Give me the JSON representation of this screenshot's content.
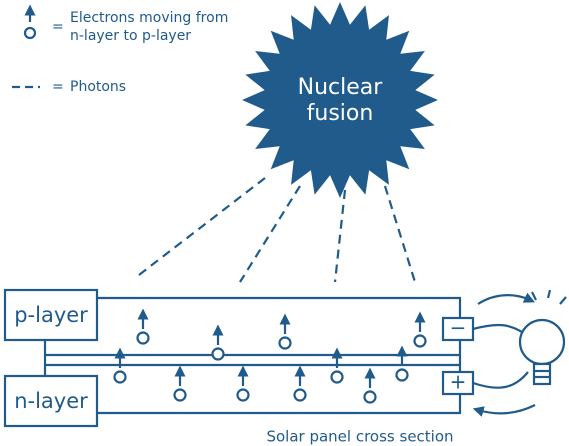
{
  "legend": {
    "electrons": {
      "symbol": "=",
      "lines": [
        "Electrons moving from",
        "n-layer to p-layer"
      ]
    },
    "photons": {
      "symbol": "=",
      "text": "Photons"
    }
  },
  "sun": {
    "lines": [
      "Nuclear",
      "fusion"
    ]
  },
  "layers": {
    "p": "p-layer",
    "n": "n-layer"
  },
  "terminals": {
    "negative": "−",
    "positive": "+"
  },
  "caption": "Solar panel cross section"
}
